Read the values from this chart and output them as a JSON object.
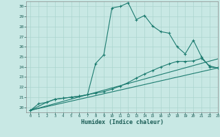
{
  "xlabel": "Humidex (Indice chaleur)",
  "xlim": [
    -0.5,
    23
  ],
  "ylim": [
    19.5,
    30.5
  ],
  "xticks": [
    0,
    1,
    2,
    3,
    4,
    5,
    6,
    7,
    8,
    9,
    10,
    11,
    12,
    13,
    14,
    15,
    16,
    17,
    18,
    19,
    20,
    21,
    22,
    23
  ],
  "yticks": [
    20,
    21,
    22,
    23,
    24,
    25,
    26,
    27,
    28,
    29,
    30
  ],
  "bg_color": "#c8e8e4",
  "line_color": "#1a7a6e",
  "grid_color": "#aad4ce",
  "curves": [
    {
      "x": [
        0,
        1,
        2,
        3,
        4,
        5,
        6,
        7,
        8,
        9,
        10,
        11,
        12,
        13,
        14,
        15,
        16,
        17,
        18,
        19,
        20,
        21,
        22,
        23
      ],
      "y": [
        19.7,
        20.35,
        20.5,
        20.8,
        20.9,
        21.0,
        21.1,
        21.25,
        24.35,
        25.2,
        29.85,
        30.0,
        30.35,
        28.7,
        29.1,
        28.05,
        27.5,
        27.35,
        26.0,
        25.3,
        26.65,
        25.0,
        24.0,
        23.9
      ],
      "has_markers": true
    },
    {
      "x": [
        0,
        23
      ],
      "y": [
        19.7,
        24.8
      ],
      "has_markers": false
    },
    {
      "x": [
        0,
        23
      ],
      "y": [
        19.7,
        23.9
      ],
      "has_markers": false
    },
    {
      "x": [
        0,
        2,
        3,
        4,
        5,
        6,
        7,
        8,
        9,
        10,
        11,
        12,
        13,
        14,
        15,
        16,
        17,
        18,
        19,
        20,
        21,
        22,
        23
      ],
      "y": [
        19.7,
        20.5,
        20.8,
        20.9,
        21.0,
        21.1,
        21.25,
        21.4,
        21.55,
        21.8,
        22.1,
        22.45,
        22.9,
        23.3,
        23.65,
        24.0,
        24.3,
        24.55,
        24.55,
        24.6,
        24.85,
        24.1,
        23.9
      ],
      "has_markers": true
    }
  ]
}
